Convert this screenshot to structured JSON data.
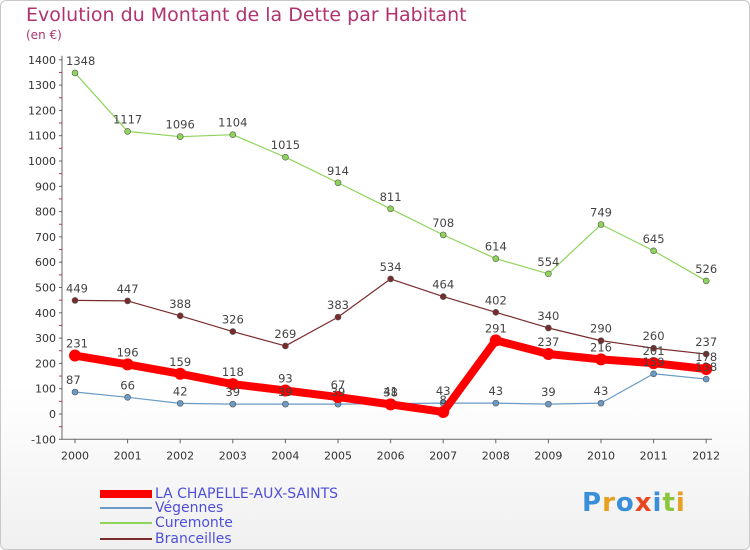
{
  "header": {
    "title": "Evolution du Montant de la Dette par Habitant",
    "subtitle": "(en €)"
  },
  "logo": {
    "text": "Proxiti"
  },
  "chart_data": {
    "type": "line",
    "title": "Evolution du Montant de la Dette par Habitant",
    "subtitle": "(en €)",
    "xlabel": "",
    "ylabel": "",
    "categories": [
      "2000",
      "2001",
      "2002",
      "2003",
      "2004",
      "2005",
      "2006",
      "2007",
      "2008",
      "2009",
      "2010",
      "2011",
      "2012"
    ],
    "ylim": [
      -100,
      1400
    ],
    "yticks": [
      -100,
      0,
      100,
      200,
      300,
      400,
      500,
      600,
      700,
      800,
      900,
      1000,
      1100,
      1200,
      1300,
      1400
    ],
    "grid": false,
    "legend_position": "bottom-left",
    "series": [
      {
        "name": "LA CHAPELLE-AUX-SAINTS",
        "color": "#ff0000",
        "values": [
          231,
          196,
          159,
          118,
          93,
          67,
          38,
          8,
          291,
          237,
          216,
          201,
          178
        ],
        "labels": [
          "231",
          "196",
          "159",
          "118",
          "93",
          "67",
          "38",
          "8",
          "291",
          "237",
          "216",
          "201",
          "178"
        ]
      },
      {
        "name": "Végennes",
        "color": "#6a9ac6",
        "values": [
          87,
          66,
          42,
          39,
          39,
          39,
          41,
          43,
          43,
          39,
          43,
          159,
          138
        ],
        "labels": [
          "87",
          "66",
          "42",
          "39",
          "39",
          "39",
          "41",
          "43",
          "43",
          "39",
          "43",
          "159",
          "138"
        ]
      },
      {
        "name": "Curemonte",
        "color": "#8fd45a",
        "values": [
          1348,
          1117,
          1096,
          1104,
          1015,
          914,
          811,
          708,
          614,
          554,
          749,
          645,
          526
        ],
        "labels": [
          "1348",
          "1117",
          "1096",
          "1104",
          "1015",
          "914",
          "811",
          "708",
          "614",
          "554",
          "749",
          "645",
          "526"
        ]
      },
      {
        "name": "Branceilles",
        "color": "#7a2c2c",
        "values": [
          449,
          447,
          388,
          326,
          269,
          383,
          534,
          464,
          402,
          340,
          290,
          260,
          237
        ],
        "labels": [
          "449",
          "447",
          "388",
          "326",
          "269",
          "383",
          "534",
          "464",
          "402",
          "340",
          "290",
          "260",
          "237"
        ]
      }
    ]
  }
}
